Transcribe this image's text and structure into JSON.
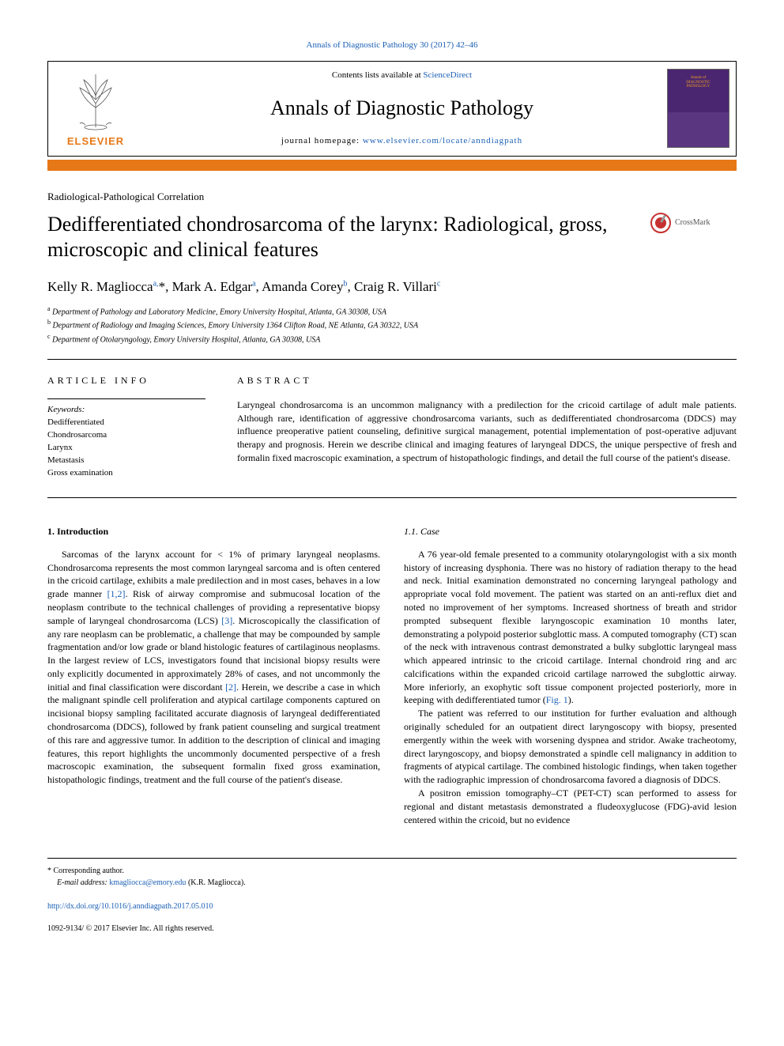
{
  "meta": {
    "citation": "Annals of Diagnostic Pathology 30 (2017) 42–46",
    "citation_url_text": "Annals of Diagnostic Pathology 30 (2017) 42–46",
    "contents_prefix": "Contents lists available at ",
    "contents_link": "ScienceDirect",
    "journal_name": "Annals of Diagnostic Pathology",
    "homepage_prefix": "journal homepage: ",
    "homepage_link": "www.elsevier.com/locate/anndiagpath",
    "publisher": "ELSEVIER",
    "cover_line1": "Annals of",
    "cover_line2": "DIAGNOSTIC",
    "cover_line3": "PATHOLOGY"
  },
  "article": {
    "type": "Radiological-Pathological Correlation",
    "title": "Dedifferentiated chondrosarcoma of the larynx: Radiological, gross, microscopic and clinical features",
    "crossmark": "CrossMark",
    "authors_html": "Kelly R. Magliocca<sup>a,</sup>*, Mark A. Edgar<sup>a</sup>, Amanda Corey<sup>b</sup>, Craig R. Villari<sup>c</sup>",
    "affiliations": {
      "a": "Department of Pathology and Laboratory Medicine, Emory University Hospital, Atlanta, GA 30308, USA",
      "b": "Department of Radiology and Imaging Sciences, Emory University 1364 Clifton Road, NE Atlanta, GA 30322, USA",
      "c": "Department of Otolaryngology, Emory University Hospital, Atlanta, GA 30308, USA"
    }
  },
  "info": {
    "heading": "ARTICLE INFO",
    "keywords_label": "Keywords:",
    "keywords": [
      "Dedifferentiated",
      "Chondrosarcoma",
      "Larynx",
      "Metastasis",
      "Gross examination"
    ]
  },
  "abstract": {
    "heading": "ABSTRACT",
    "text": "Laryngeal chondrosarcoma is an uncommon malignancy with a predilection for the cricoid cartilage of adult male patients. Although rare, identification of aggressive chondrosarcoma variants, such as dedifferentiated chondrosarcoma (DDCS) may influence preoperative patient counseling, definitive surgical management, potential implementation of post-operative adjuvant therapy and prognosis. Herein we describe clinical and imaging features of laryngeal DDCS, the unique perspective of fresh and formalin fixed macroscopic examination, a spectrum of histopathologic findings, and detail the full course of the patient's disease."
  },
  "body": {
    "intro_heading": "1. Introduction",
    "intro_p1_pre": "Sarcomas of the larynx account for < 1% of primary laryngeal neoplasms. Chondrosarcoma represents the most common laryngeal sarcoma and is often centered in the cricoid cartilage, exhibits a male predilection and in most cases, behaves in a low grade manner ",
    "ref12": "[1,2]",
    "intro_p1_mid": ". Risk of airway compromise and submucosal location of the neoplasm contribute to the technical challenges of providing a representative biopsy sample of laryngeal chondrosarcoma (LCS) ",
    "ref3": "[3]",
    "intro_p1_mid2": ". Microscopically the classification of any rare neoplasm can be problematic, a challenge that may be compounded by sample fragmentation and/or low grade or bland histologic features of cartilaginous neoplasms. In the largest review of LCS, investigators found that incisional biopsy results were only explicitly documented in approximately 28% of cases, and not uncommonly the initial and final classification were discordant ",
    "ref2": "[2]",
    "intro_p1_post": ". Herein, we describe a case in which the malignant spindle cell proliferation and atypical cartilage components captured on incisional biopsy sampling facilitated accurate diagnosis of laryngeal dedifferentiated chondrosarcoma (DDCS), followed by frank patient counseling and surgical treatment of this rare and aggressive tumor. In addition to the description of clinical and imaging features, this report highlights the uncommonly documented perspective of a fresh macroscopic examination, the subsequent formalin fixed gross examination, histopathologic findings, treatment and the full course of the patient's disease.",
    "case_heading": "1.1. Case",
    "case_p1_pre": "A 76 year-old female presented to a community otolaryngologist with a six month history of increasing dysphonia. There was no history of radiation therapy to the head and neck. Initial examination demonstrated no concerning laryngeal pathology and appropriate vocal fold movement. The patient was started on an anti-reflux diet and noted no improvement of her symptoms. Increased shortness of breath and stridor prompted subsequent flexible laryngoscopic examination 10 months later, demonstrating a polypoid posterior subglottic mass. A computed tomography (CT) scan of the neck with intravenous contrast demonstrated a bulky subglottic laryngeal mass which appeared intrinsic to the cricoid cartilage. Internal chondroid ring and arc calcifications within the expanded cricoid cartilage narrowed the subglottic airway. More inferiorly, an exophytic soft tissue component projected posteriorly, more in keeping with dedifferentiated tumor (",
    "fig1": "Fig. 1",
    "case_p1_post": ").",
    "case_p2": "The patient was referred to our institution for further evaluation and although originally scheduled for an outpatient direct laryngoscopy with biopsy, presented emergently within the week with worsening dyspnea and stridor. Awake tracheotomy, direct laryngoscopy, and biopsy demonstrated a spindle cell malignancy in addition to fragments of atypical cartilage. The combined histologic findings, when taken together with the radiographic impression of chondrosarcoma favored a diagnosis of DDCS.",
    "case_p3": "A positron emission tomography–CT (PET-CT) scan performed to assess for regional and distant metastasis demonstrated a fludeoxyglucose (FDG)-avid lesion centered within the cricoid, but no evidence"
  },
  "footer": {
    "corresponding": "* Corresponding author.",
    "email_label": "E-mail address: ",
    "email": "kmagliocca@emory.edu",
    "email_suffix": " (K.R. Magliocca).",
    "doi": "http://dx.doi.org/10.1016/j.anndiagpath.2017.05.010",
    "issn_copyright": "1092-9134/ © 2017 Elsevier Inc. All rights reserved."
  },
  "colors": {
    "link": "#1a5fb4",
    "orange": "#e67817",
    "purple": "#4a2670"
  }
}
